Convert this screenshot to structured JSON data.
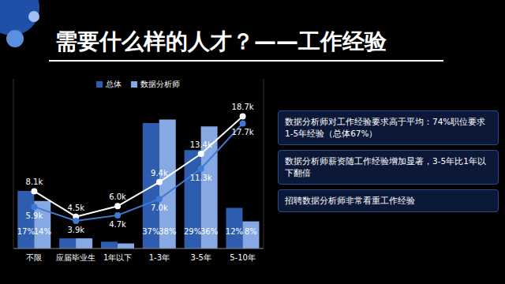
{
  "chart_data": {
    "type": "bar",
    "title": "需要什么样的人才？——工作经验",
    "categories": [
      "不限",
      "应届毕业生",
      "1年以下",
      "1-3年",
      "3-5年",
      "5-10年"
    ],
    "series": [
      {
        "name": "总体",
        "type": "bar",
        "color": "#2e5cae",
        "values": [
          17,
          3,
          2,
          37,
          29,
          12
        ],
        "value_labels": [
          "17%",
          null,
          null,
          "37%",
          "29%",
          "12%"
        ]
      },
      {
        "name": "数据分析师",
        "type": "bar",
        "color": "#86a8e3",
        "values": [
          14,
          3,
          1.5,
          38,
          36,
          8
        ],
        "value_labels": [
          "14%",
          null,
          null,
          "38%",
          "36%",
          "8%"
        ]
      },
      {
        "type": "line",
        "axis": "y2",
        "color": "#ffffff",
        "marker": "circle",
        "line_style": "solid",
        "values": [
          8.1,
          4.5,
          6.0,
          9.4,
          13.4,
          18.7
        ],
        "value_labels": [
          "8.1k",
          "4.5k",
          "6.0k",
          "9.4k",
          "13.4k",
          "18.7k"
        ]
      },
      {
        "type": "line",
        "axis": "y2",
        "color": "#3f7ad6",
        "marker": "circle",
        "line_style": "solid",
        "values": [
          5.9,
          3.9,
          4.7,
          7.0,
          11.3,
          17.7
        ],
        "value_labels": [
          "5.9k",
          "3.9k",
          "4.7k",
          "7.0k",
          "11.3k",
          "17.7k"
        ]
      }
    ],
    "ylim": [
      0,
      50
    ],
    "y2lim": [
      0,
      24
    ],
    "tick_labels": "x",
    "data_labels": true,
    "legend": "top",
    "annotations": [
      "数据分析师对工作经验要求高于平均：74%职位要求1-5年经验（总体67%）",
      "数据分析师薪资随工作经验增加显著，3-5年比1年以下翻倍",
      "招聘数据分析师非常看重工作经验"
    ]
  }
}
